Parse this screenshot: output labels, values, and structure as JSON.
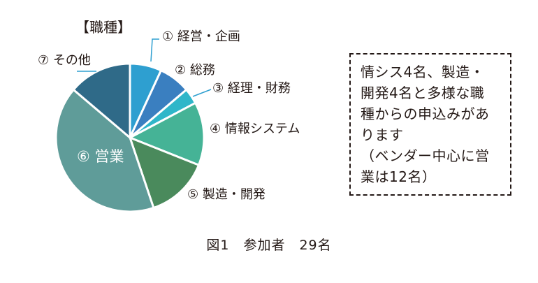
{
  "chart_data": {
    "type": "pie",
    "title": "【職種】",
    "total": 29,
    "categories": [
      "① 経営・企画",
      "② 総務",
      "③ 経理・財務",
      "④ 情報システム",
      "⑤ 製造・開発",
      "⑥ 営業",
      "⑦ その他"
    ],
    "values": [
      2,
      2,
      1,
      4,
      4,
      12,
      4
    ],
    "colors": [
      "#2e9fd0",
      "#3a7fc0",
      "#2fb6c9",
      "#45b396",
      "#4a8a5c",
      "#5f9c99",
      "#2f6a88"
    ],
    "start_angle_deg": 0,
    "direction": "clockwise"
  },
  "note": {
    "lines": [
      "情シス4名、製造・",
      "開発4名と多様な職",
      "種からの申込みがあ",
      "ります",
      "（ベンダー中心に営",
      "業は12名）"
    ]
  },
  "caption": "図1　参加者　29名"
}
